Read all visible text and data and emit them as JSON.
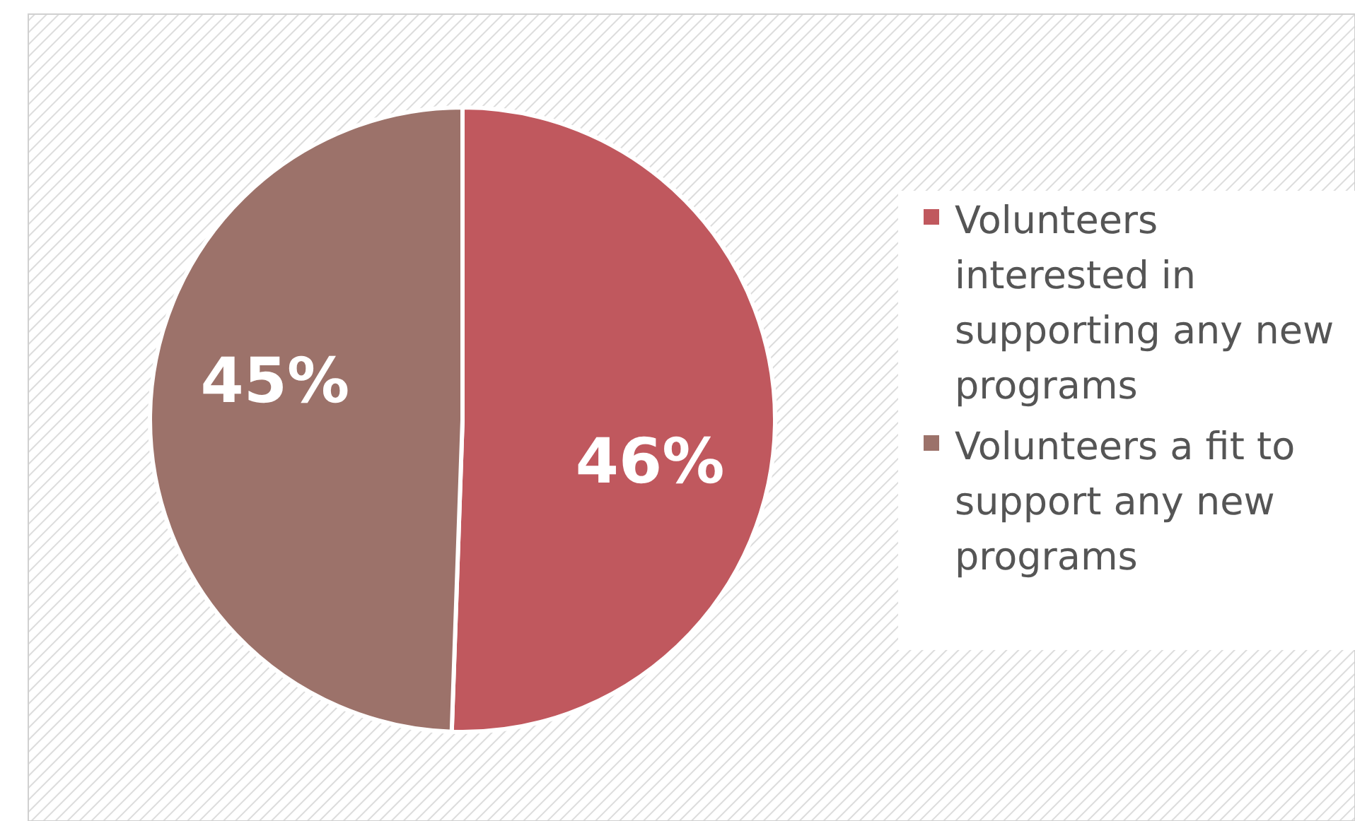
{
  "chart_data": {
    "type": "pie",
    "categories": [
      "Volunteers interested in supporting any new programs",
      "Volunteers a fit to support any new programs"
    ],
    "values": [
      46,
      45
    ],
    "colors": [
      "#c0585e",
      "#9c726a"
    ],
    "value_labels": [
      "46%",
      "45%"
    ],
    "legend": "right"
  }
}
